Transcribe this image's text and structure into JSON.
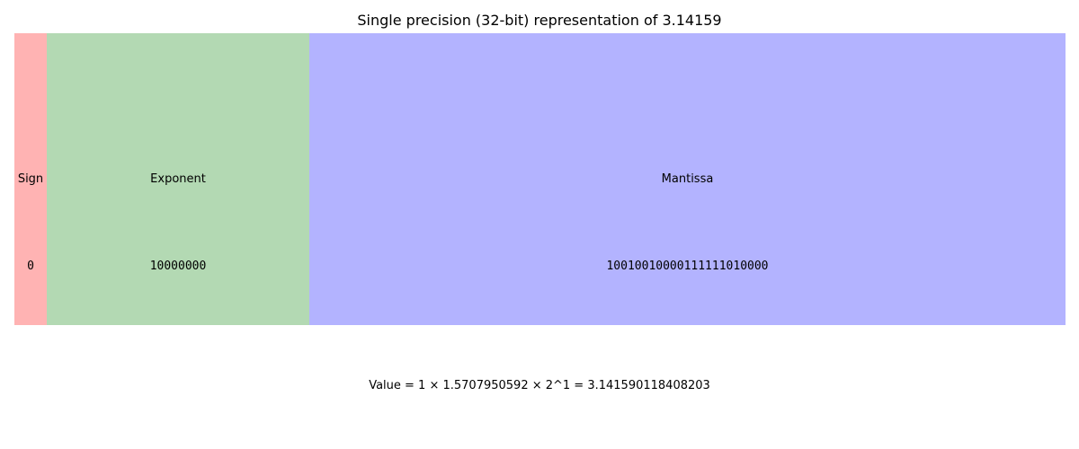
{
  "title": "Single precision (32-bit) representation of 3.14159",
  "fields": [
    {
      "name": "Sign",
      "bits": "0",
      "color": "#ffb3b3"
    },
    {
      "name": "Exponent",
      "bits": "10000000",
      "color": "#b3d9b3"
    },
    {
      "name": "Mantissa",
      "bits": "10010010000111111010000",
      "color": "#b3b3ff"
    }
  ],
  "value_line": "Value = 1 × 1.5707950592 × 2^1 = 3.141590118408203"
}
